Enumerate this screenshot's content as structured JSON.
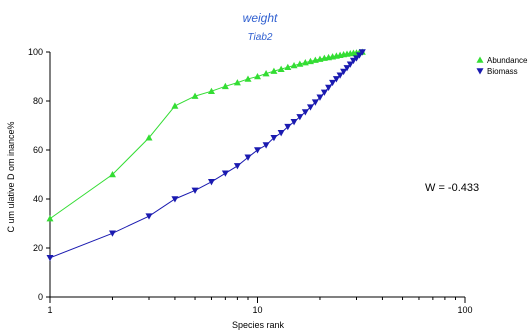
{
  "chart_data": {
    "type": "line",
    "title": "weight",
    "subtitle": "Tiab2",
    "xlabel": "Species rank",
    "ylabel": "C um ulative D om inance%",
    "x_scale": "log",
    "xlim": [
      1,
      100
    ],
    "ylim": [
      0,
      100
    ],
    "x_ticks": [
      1,
      10,
      100
    ],
    "y_ticks": [
      0,
      20,
      40,
      60,
      80,
      100
    ],
    "x_tick_labels": [
      "1",
      "10",
      "100"
    ],
    "y_tick_labels": [
      "0",
      "20",
      "40",
      "60",
      "80",
      "100"
    ],
    "legend_position": "top-right",
    "annotation": "W = -0.433",
    "series": [
      {
        "name": "Abundance",
        "color": "#33dd33",
        "marker": "triangle-up",
        "x": [
          1,
          2,
          3,
          4,
          5,
          6,
          7,
          8,
          9,
          10,
          11,
          12,
          13,
          14,
          15,
          16,
          17,
          18,
          19,
          20,
          21,
          22,
          23,
          24,
          25,
          26,
          27,
          28,
          29,
          30,
          31,
          32
        ],
        "y": [
          32,
          50,
          65,
          78,
          82,
          84,
          86,
          87.5,
          89,
          90,
          91.2,
          92.2,
          93,
          93.8,
          94.5,
          95.1,
          95.7,
          96.2,
          96.7,
          97.1,
          97.5,
          97.8,
          98.1,
          98.4,
          98.7,
          99,
          99.2,
          99.4,
          99.6,
          99.7,
          99.85,
          100
        ]
      },
      {
        "name": "Biomass",
        "color": "#1a1ab0",
        "marker": "triangle-down",
        "x": [
          1,
          2,
          3,
          4,
          5,
          6,
          7,
          8,
          9,
          10,
          11,
          12,
          13,
          14,
          15,
          16,
          17,
          18,
          19,
          20,
          21,
          22,
          23,
          24,
          25,
          26,
          27,
          28,
          29,
          30,
          31,
          32
        ],
        "y": [
          16,
          26,
          33,
          40,
          43.5,
          47,
          50.5,
          53.5,
          57,
          60,
          62,
          65,
          67,
          69.5,
          71.5,
          73.5,
          75.5,
          77.5,
          79.5,
          81.5,
          83.5,
          85.5,
          87.5,
          89,
          90.5,
          92,
          93.5,
          95,
          96.5,
          97.5,
          98.7,
          100
        ]
      }
    ]
  }
}
